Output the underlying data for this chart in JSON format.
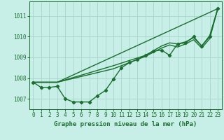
{
  "title": "Graphe pression niveau de la mer (hPa)",
  "background_color": "#c8eee8",
  "grid_color": "#a8d4cc",
  "line_color": "#1a6e2e",
  "marker_color": "#1a6e2e",
  "xlim": [
    -0.5,
    23.5
  ],
  "ylim": [
    1006.5,
    1011.7
  ],
  "yticks": [
    1007,
    1008,
    1009,
    1010,
    1011
  ],
  "xticks": [
    0,
    1,
    2,
    3,
    4,
    5,
    6,
    7,
    8,
    9,
    10,
    11,
    12,
    13,
    14,
    15,
    16,
    17,
    18,
    19,
    20,
    21,
    22,
    23
  ],
  "series": [
    {
      "x": [
        0,
        1,
        2,
        3,
        4,
        5,
        6,
        7,
        8,
        9,
        10,
        11,
        12,
        13,
        14,
        15,
        16,
        17,
        18,
        19,
        20,
        21,
        22,
        23
      ],
      "y": [
        1007.8,
        1007.55,
        1007.55,
        1007.6,
        1007.0,
        1006.85,
        1006.85,
        1006.85,
        1007.15,
        1007.4,
        1007.95,
        1008.5,
        1008.75,
        1008.9,
        1009.1,
        1009.3,
        1009.35,
        1009.1,
        1009.65,
        1009.7,
        1010.0,
        1009.55,
        1010.0,
        1011.35
      ],
      "with_markers": true,
      "linestyle": "-",
      "linewidth": 1.0
    },
    {
      "x": [
        0,
        3,
        23
      ],
      "y": [
        1007.8,
        1007.8,
        1011.35
      ],
      "with_markers": false,
      "linestyle": "-",
      "linewidth": 1.0
    },
    {
      "x": [
        0,
        3,
        10,
        14,
        16,
        17,
        18,
        19,
        20,
        21,
        22,
        23
      ],
      "y": [
        1007.8,
        1007.8,
        1008.6,
        1009.1,
        1009.55,
        1009.7,
        1009.65,
        1009.75,
        1009.95,
        1009.55,
        1010.05,
        1011.35
      ],
      "with_markers": false,
      "linestyle": "-",
      "linewidth": 1.0
    },
    {
      "x": [
        0,
        3,
        10,
        14,
        16,
        17,
        18,
        19,
        20,
        21,
        22,
        23
      ],
      "y": [
        1007.8,
        1007.8,
        1008.45,
        1009.05,
        1009.45,
        1009.6,
        1009.5,
        1009.65,
        1009.85,
        1009.45,
        1009.9,
        1011.35
      ],
      "with_markers": false,
      "linestyle": "-",
      "linewidth": 1.0
    }
  ],
  "tick_fontsize": 5.5,
  "title_fontsize": 6.5
}
